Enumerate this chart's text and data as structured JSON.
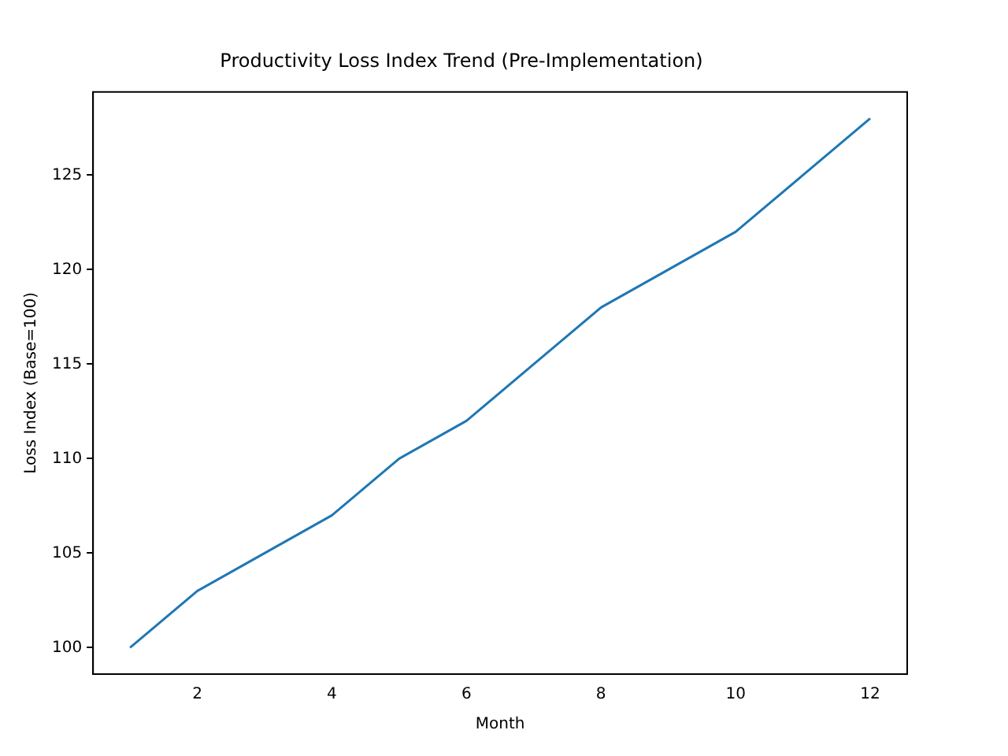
{
  "chart_data": {
    "type": "line",
    "title": "Productivity Loss Index Trend (Pre-Implementation)",
    "xlabel": "Month",
    "ylabel": "Loss Index (Base=100)",
    "x": [
      1,
      2,
      3,
      4,
      5,
      6,
      7,
      8,
      9,
      10,
      11,
      12
    ],
    "series": [
      {
        "color": "#1f77b4",
        "values": [
          100,
          103,
          105,
          107,
          110,
          112,
          115,
          118,
          120,
          122,
          125,
          128
        ]
      }
    ],
    "xlim": [
      0.45,
      12.55
    ],
    "xticks": [
      2,
      4,
      6,
      8,
      10,
      12
    ],
    "ylim": [
      98.6,
      129.4
    ],
    "yticks": [
      100,
      105,
      110,
      115,
      120,
      125
    ],
    "grid": false,
    "legend": false,
    "marker": "none",
    "line_style": "solid"
  }
}
